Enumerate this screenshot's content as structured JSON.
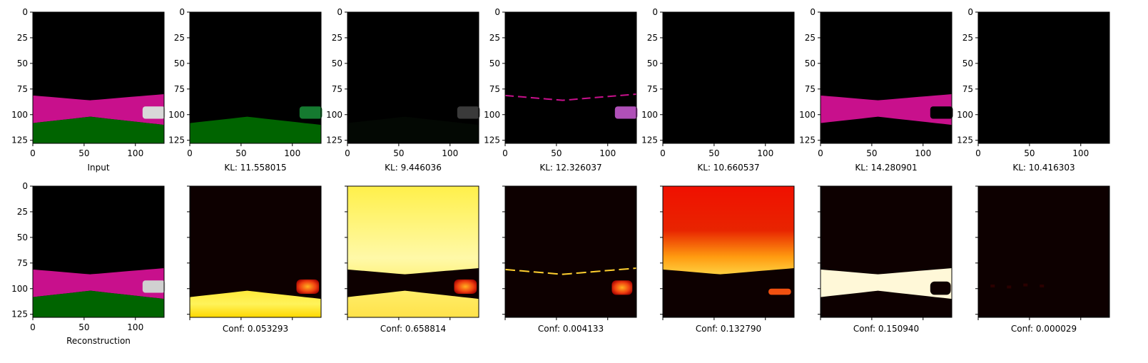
{
  "chart_data": {
    "type": "image_grid",
    "image_axis": {
      "x_ticks": [
        0,
        50,
        100
      ],
      "y_ticks": [
        0,
        25,
        50,
        75,
        100,
        125
      ],
      "range": [
        0,
        128
      ]
    },
    "colors": {
      "magenta": "#c8108c",
      "green": "#006400",
      "background": "#000000"
    },
    "top_row": [
      {
        "label": "Input",
        "kind": "scene"
      },
      {
        "label": "KL: 11.558015",
        "kind": "green_band"
      },
      {
        "label": "KL: 9.446036",
        "kind": "dark_car"
      },
      {
        "label": "KL: 12.326037",
        "kind": "road_line"
      },
      {
        "label": "KL: 10.660537",
        "kind": "black"
      },
      {
        "label": "KL: 14.280901",
        "kind": "magenta_road"
      },
      {
        "label": "KL: 10.416303",
        "kind": "black"
      }
    ],
    "bottom_row": [
      {
        "label": "Reconstruction",
        "kind": "scene",
        "colormap": "rgb"
      },
      {
        "label": "Conf: 0.053293",
        "kind": "heat_ground",
        "colormap": "hot"
      },
      {
        "label": "Conf: 0.658814",
        "kind": "heat_inverse",
        "colormap": "hot"
      },
      {
        "label": "Conf: 0.004133",
        "kind": "heat_line",
        "colormap": "hot"
      },
      {
        "label": "Conf: 0.132790",
        "kind": "heat_sky",
        "colormap": "hot"
      },
      {
        "label": "Conf: 0.150940",
        "kind": "heat_road",
        "colormap": "hot"
      },
      {
        "label": "Conf: 0.000029",
        "kind": "heat_dark",
        "colormap": "hot"
      }
    ]
  }
}
